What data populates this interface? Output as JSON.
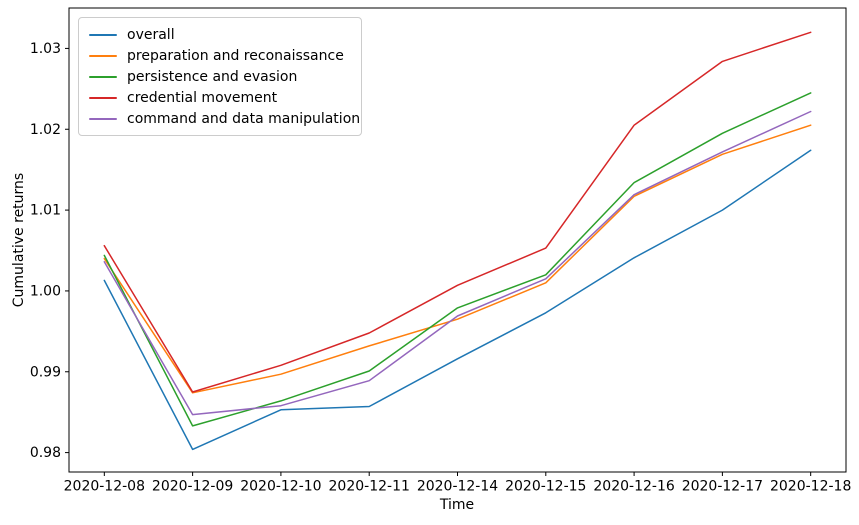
{
  "figure": {
    "background": "#ffffff",
    "axis_color": "#000000",
    "legend_border_color": "#cccccc"
  },
  "chart_data": {
    "type": "line",
    "title": "",
    "xlabel": "Time",
    "ylabel": "Cumulative returns",
    "x": [
      "2020-12-08",
      "2020-12-09",
      "2020-12-10",
      "2020-12-11",
      "2020-12-14",
      "2020-12-15",
      "2020-12-16",
      "2020-12-17",
      "2020-12-18"
    ],
    "series": [
      {
        "name": "overall",
        "color": "#1f77b4",
        "values": [
          1.0013,
          0.9804,
          0.9853,
          0.9857,
          0.9916,
          0.9973,
          1.0041,
          1.01,
          1.0174
        ]
      },
      {
        "name": "preparation and reconaissance",
        "color": "#ff7f0e",
        "values": [
          1.004,
          0.9874,
          0.9897,
          0.9932,
          0.9965,
          1.001,
          1.0117,
          1.0169,
          1.0205
        ]
      },
      {
        "name": "persistence and evasion",
        "color": "#2ca02c",
        "values": [
          1.0044,
          0.9833,
          0.9864,
          0.9901,
          0.9979,
          1.002,
          1.0134,
          1.0195,
          1.0245
        ]
      },
      {
        "name": "credential movement",
        "color": "#d62728",
        "values": [
          1.0056,
          0.9875,
          0.9908,
          0.9948,
          1.0007,
          1.0053,
          1.0205,
          1.0284,
          1.032
        ]
      },
      {
        "name": "command and data manipulation",
        "color": "#9467bd",
        "values": [
          1.0036,
          0.9847,
          0.9858,
          0.9889,
          0.9969,
          1.0015,
          1.0119,
          1.0172,
          1.0222
        ]
      }
    ],
    "yticks": [
      0.98,
      0.99,
      1.0,
      1.01,
      1.02,
      1.03
    ],
    "ylim": [
      0.9776,
      1.035
    ],
    "x_margin": 0.4,
    "grid": false,
    "legend_position": "upper left",
    "line_width": 1.5
  }
}
